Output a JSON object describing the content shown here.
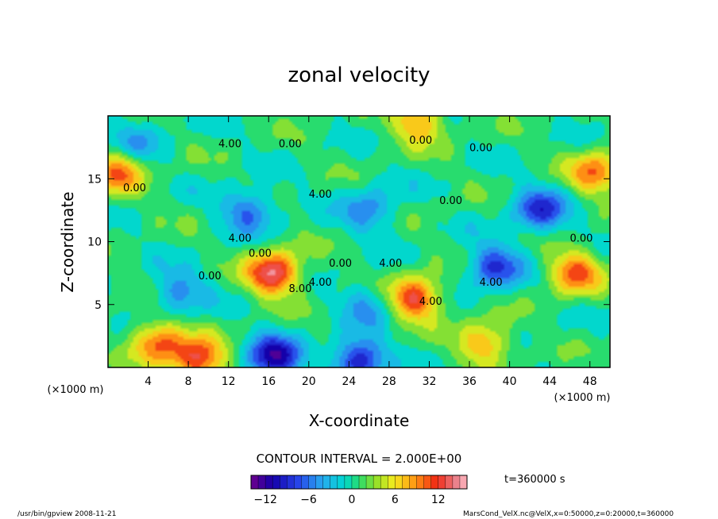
{
  "chart_data": {
    "type": "heatmap",
    "title": "zonal velocity",
    "xlabel": "X-coordinate",
    "ylabel": "Z-coordinate",
    "x_unit": "(×1000 m)",
    "y_unit": "(×1000 m)",
    "xlim": [
      0,
      50
    ],
    "ylim": [
      0,
      20
    ],
    "x_ticks": [
      4,
      8,
      12,
      16,
      20,
      24,
      28,
      32,
      36,
      40,
      44,
      48
    ],
    "y_ticks": [
      5,
      10,
      15
    ],
    "contour_interval_text": "CONTOUR INTERVAL = 2.000E+00",
    "time_text": "t=360000 s",
    "colorbar": {
      "min": -14,
      "max": 16,
      "ticks": [
        -12,
        -6,
        0,
        6,
        12
      ]
    },
    "contour_labels": [
      "4.00",
      "0.00",
      "0.00",
      "0.00",
      "0.00",
      "4.00",
      "0.00",
      "4.00",
      "0.00",
      "0.00",
      "8.00",
      "4.00",
      "0.00",
      "4.00",
      "4.00",
      "0.00",
      "4.00"
    ],
    "features": [
      {
        "x": 16.5,
        "z": 7.5,
        "value": 14
      },
      {
        "x": 30.5,
        "z": 5.5,
        "value": 12
      },
      {
        "x": 46.5,
        "z": 7.5,
        "value": 10
      },
      {
        "x": 38.5,
        "z": 8.0,
        "value": -9
      },
      {
        "x": 16.5,
        "z": 0.8,
        "value": -12
      },
      {
        "x": 25.0,
        "z": 0.6,
        "value": -11
      },
      {
        "x": 37.5,
        "z": 2.0,
        "value": 8
      },
      {
        "x": 5.0,
        "z": 2.0,
        "value": 10
      },
      {
        "x": 9.0,
        "z": 0.6,
        "value": 12
      },
      {
        "x": 1.0,
        "z": 15.5,
        "value": 9
      },
      {
        "x": 48.5,
        "z": 15.5,
        "value": 9
      },
      {
        "x": 31.0,
        "z": 19.5,
        "value": 8
      },
      {
        "x": 43.0,
        "z": 12.5,
        "value": -9
      },
      {
        "x": 14.0,
        "z": 12.5,
        "value": -7
      },
      {
        "x": 26.0,
        "z": 12.5,
        "value": -6
      },
      {
        "x": 7.0,
        "z": 6.0,
        "value": -6
      },
      {
        "x": 26.0,
        "z": 5.0,
        "value": -5
      },
      {
        "x": 3.0,
        "z": 18.0,
        "value": -4
      }
    ]
  },
  "footer": {
    "left": "/usr/bin/gpview   2008-11-21",
    "right": "MarsCond_VelX.nc@VelX,x=0:50000,z=0:20000,t=360000"
  }
}
